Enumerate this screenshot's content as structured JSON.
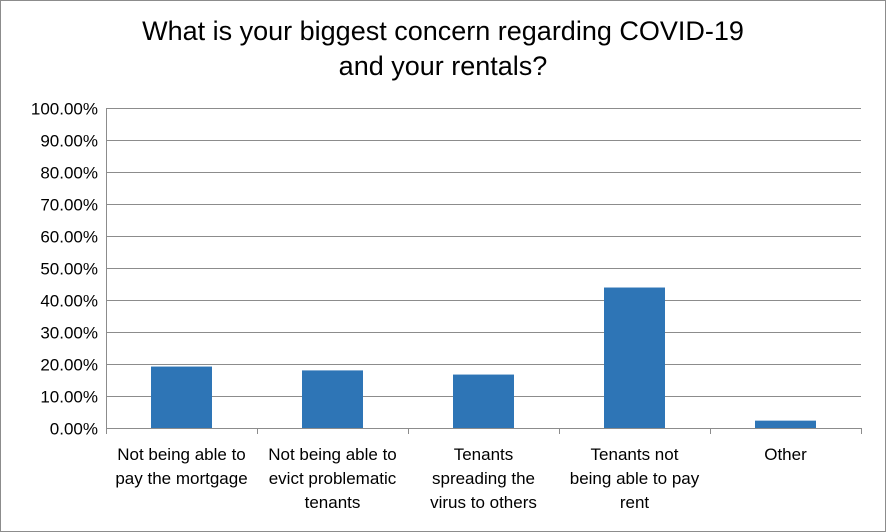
{
  "chart_data": {
    "type": "bar",
    "title_lines": [
      "What is your biggest concern regarding COVID-19",
      "and your rentals?"
    ],
    "categories": [
      [
        "Not being able to",
        "pay the mortgage"
      ],
      [
        "Not being able to",
        "evict problematic",
        "tenants"
      ],
      [
        "Tenants",
        "spreading the",
        "virus to others"
      ],
      [
        "Tenants not",
        "being able to pay",
        "rent"
      ],
      [
        "Other"
      ]
    ],
    "values": [
      19.2,
      18.0,
      16.7,
      43.9,
      2.3
    ],
    "yticks": [
      "0.00%",
      "10.00%",
      "20.00%",
      "30.00%",
      "40.00%",
      "50.00%",
      "60.00%",
      "70.00%",
      "80.00%",
      "90.00%",
      "100.00%"
    ],
    "ylim": [
      0,
      100
    ],
    "grid": true,
    "legend": "none",
    "bar_color": "#2e75b6",
    "gridline_color": "#8c8c8c"
  }
}
